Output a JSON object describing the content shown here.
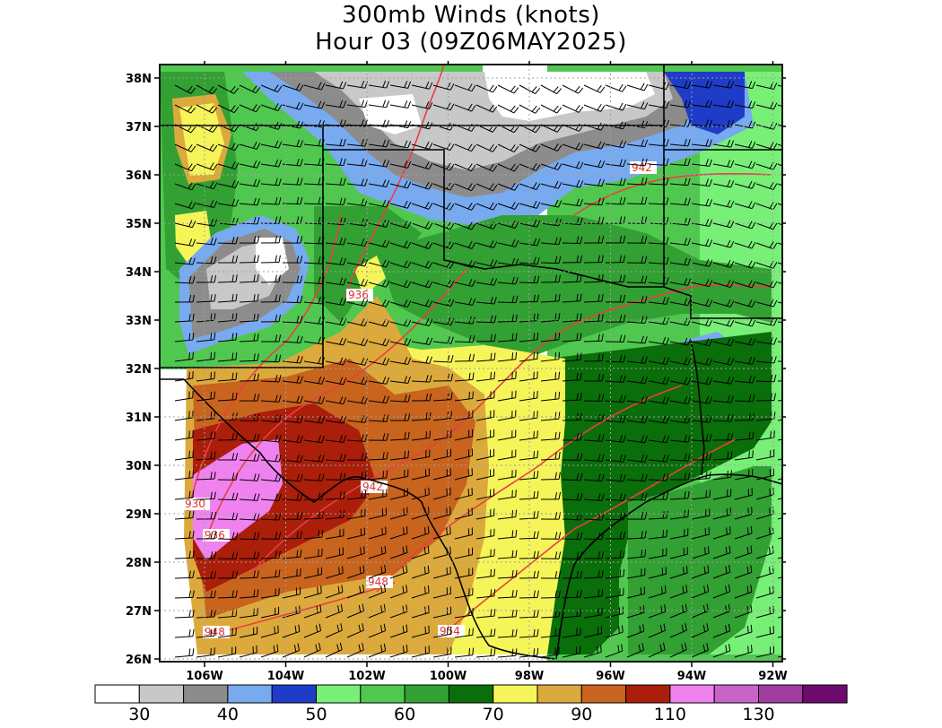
{
  "title": {
    "line1": "300mb Winds (knots)",
    "line2": "Hour 03 (09Z06MAY2025)"
  },
  "axes": {
    "lat_labels": [
      "38N",
      "37N",
      "36N",
      "35N",
      "34N",
      "33N",
      "32N",
      "31N",
      "30N",
      "29N",
      "28N",
      "27N",
      "26N"
    ],
    "lon_labels": [
      "106W",
      "104W",
      "102W",
      "100W",
      "98W",
      "96W",
      "94W",
      "92W"
    ]
  },
  "height_contours": {
    "color": "#e84040",
    "labels": [
      "942",
      "936",
      "942",
      "930",
      "936",
      "948",
      "948",
      "954"
    ]
  },
  "colorbar": {
    "colors": [
      "#ffffff",
      "#c8c8c8",
      "#8c8c8c",
      "#78aaf0",
      "#1e3cc8",
      "#78f078",
      "#50c850",
      "#32a032",
      "#0a6e0a",
      "#f5f55a",
      "#dcaa3c",
      "#c8641e",
      "#aa1e0a",
      "#f082f0",
      "#c864c8",
      "#a03ca0",
      "#6e0a6e"
    ],
    "labels": [
      "30",
      "40",
      "50",
      "60",
      "70",
      "90",
      "110",
      "130"
    ]
  },
  "palette": {
    "frame": "#000000",
    "state_borders": "#000000",
    "grid": "#a0a0a0"
  }
}
